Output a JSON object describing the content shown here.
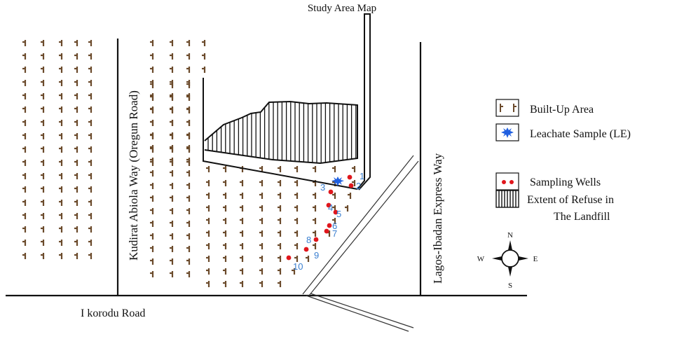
{
  "header": {
    "title": "Study Area Map"
  },
  "roads": {
    "ikorodu": "I korodu Road",
    "kudirat": "Kudirat Abiola Way (Oregun Road)",
    "lagos_ibadan": "Lagos-Ibadan Express Way"
  },
  "legend": {
    "built_up": "Built-Up Area",
    "leachate": "Leachate Sample (LE)",
    "wells": "Sampling Wells",
    "refuse_line1": "Extent of Refuse in",
    "refuse_line2": "The Landfill"
  },
  "compass": {
    "n": "N",
    "s": "S",
    "e": "E",
    "w": "W"
  },
  "wells": [
    {
      "id": "well-1",
      "label": "1"
    },
    {
      "id": "well-2",
      "label": "2"
    },
    {
      "id": "well-3",
      "label": "3"
    },
    {
      "id": "well-4",
      "label": "4"
    },
    {
      "id": "well-5",
      "label": "5"
    },
    {
      "id": "well-6",
      "label": "6"
    },
    {
      "id": "well-7",
      "label": "7"
    },
    {
      "id": "well-8",
      "label": "8"
    },
    {
      "id": "well-9",
      "label": "9"
    },
    {
      "id": "well-10",
      "label": "10"
    }
  ],
  "colors": {
    "built_up_symbol": "#6b4a2b",
    "well_dot": "#e0161c",
    "well_label": "#3a7fd0",
    "leachate": "#1f5fe0",
    "line": "#111111"
  }
}
